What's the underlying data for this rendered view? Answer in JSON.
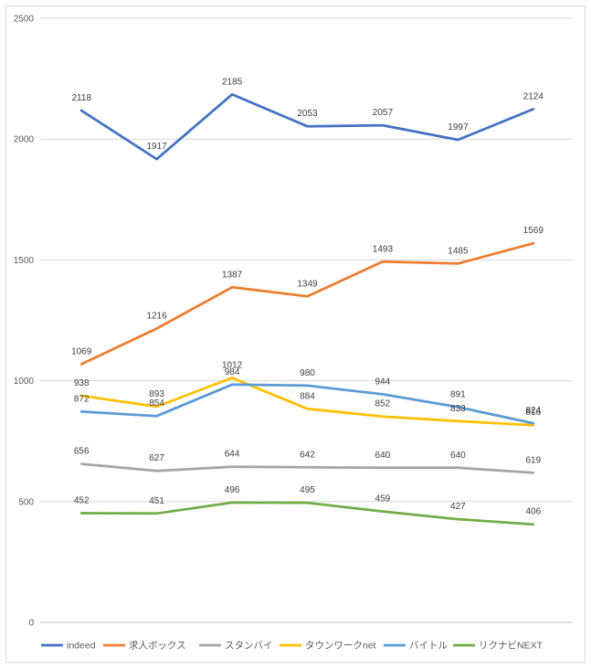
{
  "chart_data": {
    "type": "line",
    "ylim": [
      0,
      2500
    ],
    "yticks": [
      0,
      500,
      1000,
      1500,
      2000,
      2500
    ],
    "grid": true,
    "legend_position": "bottom",
    "data_labels": true,
    "series": [
      {
        "name": "indeed",
        "color": "#4472C4",
        "values": [
          2118,
          1917,
          2185,
          2053,
          2057,
          1997,
          2124
        ]
      },
      {
        "name": "求人ボックス",
        "color": "#ED7D31",
        "values": [
          1069,
          1216,
          1387,
          1349,
          1493,
          1485,
          1569
        ]
      },
      {
        "name": "スタンバイ",
        "color": "#A5A5A5",
        "values": [
          656,
          627,
          644,
          642,
          640,
          640,
          619
        ]
      },
      {
        "name": "タウンワークnet",
        "color": "#FFC000",
        "values": [
          938,
          893,
          1012,
          884,
          852,
          833,
          816
        ]
      },
      {
        "name": "バイトル",
        "color": "#5B9BD5",
        "values": [
          872,
          854,
          984,
          980,
          944,
          891,
          824
        ]
      },
      {
        "name": "リクナビNEXT",
        "color": "#70AD47",
        "values": [
          452,
          451,
          496,
          495,
          459,
          427,
          406
        ]
      }
    ]
  }
}
